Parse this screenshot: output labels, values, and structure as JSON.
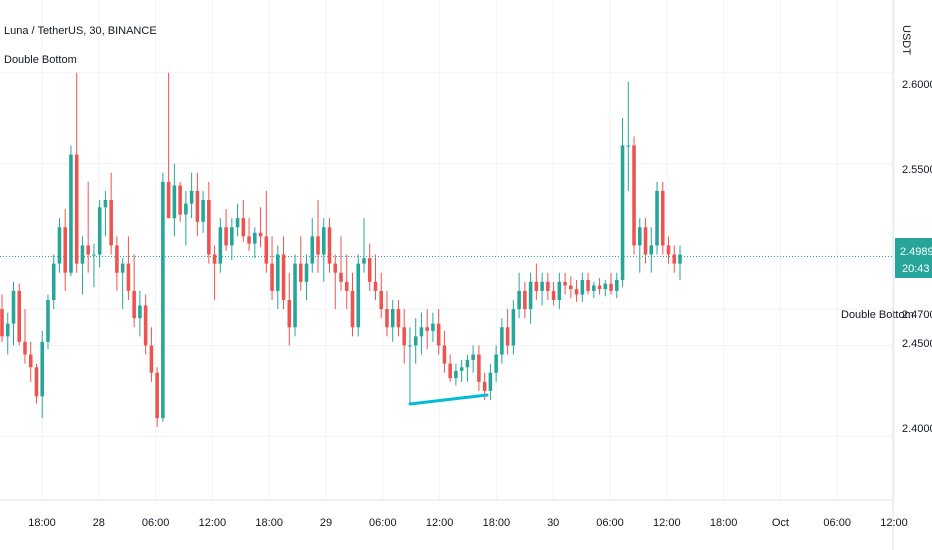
{
  "header": {
    "symbol_line": "Luna / TetherUS, 30, BINANCE",
    "indicator_name": "Double Bottom"
  },
  "price_axis": {
    "unit": "USDT",
    "ticks": [
      "2.6000",
      "2.5500",
      "2.4700",
      "2.4500",
      "2.4000"
    ],
    "current_price": "2.4989",
    "countdown": "20:43"
  },
  "annotation": {
    "label": "Double Bottom"
  },
  "colors": {
    "up": "#26a69a",
    "down": "#ef5350",
    "pattern_line": "#00bcd4",
    "price_line": "#26a69a",
    "grid": "#f0f3fa"
  },
  "chart_data": {
    "type": "candlestick",
    "title": "Luna / TetherUS, 30, BINANCE",
    "ylabel": "USDT",
    "ylim": [
      2.365,
      2.64
    ],
    "y_ticks": [
      2.6,
      2.55,
      2.47,
      2.45,
      2.4
    ],
    "x_tick_labels": [
      "18:00",
      "28",
      "06:00",
      "12:00",
      "18:00",
      "29",
      "06:00",
      "12:00",
      "18:00",
      "30",
      "06:00",
      "12:00",
      "18:00",
      "Oct",
      "06:00",
      "12:00"
    ],
    "interval_minutes": 30,
    "current_price": 2.4989,
    "pattern": {
      "name": "Double Bottom",
      "line_from": 2.415,
      "line_to": 2.42
    },
    "candles": [
      [
        2.47,
        2.478,
        2.452,
        2.455
      ],
      [
        2.455,
        2.468,
        2.445,
        2.462
      ],
      [
        2.462,
        2.485,
        2.45,
        2.48
      ],
      [
        2.48,
        2.484,
        2.45,
        2.452
      ],
      [
        2.452,
        2.47,
        2.44,
        2.445
      ],
      [
        2.445,
        2.452,
        2.43,
        2.438
      ],
      [
        2.438,
        2.44,
        2.418,
        2.422
      ],
      [
        2.422,
        2.458,
        2.41,
        2.452
      ],
      [
        2.452,
        2.478,
        2.448,
        2.475
      ],
      [
        2.475,
        2.5,
        2.47,
        2.495
      ],
      [
        2.495,
        2.52,
        2.49,
        2.515
      ],
      [
        2.515,
        2.525,
        2.48,
        2.49
      ],
      [
        2.49,
        2.56,
        2.488,
        2.555
      ],
      [
        2.555,
        2.6,
        2.49,
        2.495
      ],
      [
        2.495,
        2.51,
        2.478,
        2.505
      ],
      [
        2.505,
        2.54,
        2.49,
        2.5
      ],
      [
        2.5,
        2.506,
        2.482,
        2.5
      ],
      [
        2.5,
        2.53,
        2.493,
        2.526
      ],
      [
        2.526,
        2.535,
        2.51,
        2.53
      ],
      [
        2.53,
        2.545,
        2.5,
        2.505
      ],
      [
        2.505,
        2.51,
        2.48,
        2.49
      ],
      [
        2.49,
        2.498,
        2.47,
        2.495
      ],
      [
        2.495,
        2.51,
        2.475,
        2.48
      ],
      [
        2.48,
        2.5,
        2.46,
        2.465
      ],
      [
        2.465,
        2.48,
        2.455,
        2.472
      ],
      [
        2.472,
        2.478,
        2.445,
        2.45
      ],
      [
        2.45,
        2.46,
        2.43,
        2.435
      ],
      [
        2.435,
        2.438,
        2.405,
        2.41
      ],
      [
        2.41,
        2.545,
        2.408,
        2.54
      ],
      [
        2.54,
        2.6,
        2.52,
        2.52
      ],
      [
        2.52,
        2.55,
        2.51,
        2.538
      ],
      [
        2.538,
        2.54,
        2.518,
        2.522
      ],
      [
        2.522,
        2.535,
        2.505,
        2.528
      ],
      [
        2.528,
        2.545,
        2.52,
        2.535
      ],
      [
        2.535,
        2.545,
        2.51,
        2.518
      ],
      [
        2.518,
        2.535,
        2.512,
        2.53
      ],
      [
        2.53,
        2.54,
        2.495,
        2.5
      ],
      [
        2.5,
        2.505,
        2.475,
        2.495
      ],
      [
        2.495,
        2.52,
        2.49,
        2.515
      ],
      [
        2.515,
        2.525,
        2.502,
        2.505
      ],
      [
        2.505,
        2.52,
        2.497,
        2.515
      ],
      [
        2.515,
        2.528,
        2.51,
        2.52
      ],
      [
        2.52,
        2.53,
        2.507,
        2.51
      ],
      [
        2.51,
        2.52,
        2.502,
        2.506
      ],
      [
        2.506,
        2.515,
        2.498,
        2.512
      ],
      [
        2.512,
        2.526,
        2.504,
        2.51
      ],
      [
        2.51,
        2.535,
        2.49,
        2.495
      ],
      [
        2.495,
        2.51,
        2.475,
        2.48
      ],
      [
        2.48,
        2.505,
        2.47,
        2.5
      ],
      [
        2.5,
        2.51,
        2.47,
        2.475
      ],
      [
        2.475,
        2.49,
        2.45,
        2.46
      ],
      [
        2.46,
        2.5,
        2.455,
        2.495
      ],
      [
        2.495,
        2.51,
        2.48,
        2.485
      ],
      [
        2.485,
        2.5,
        2.475,
        2.495
      ],
      [
        2.495,
        2.52,
        2.49,
        2.51
      ],
      [
        2.51,
        2.53,
        2.49,
        2.5
      ],
      [
        2.5,
        2.52,
        2.485,
        2.515
      ],
      [
        2.515,
        2.52,
        2.49,
        2.495
      ],
      [
        2.495,
        2.5,
        2.47,
        2.49
      ],
      [
        2.49,
        2.51,
        2.48,
        2.485
      ],
      [
        2.485,
        2.5,
        2.47,
        2.48
      ],
      [
        2.48,
        2.49,
        2.455,
        2.46
      ],
      [
        2.46,
        2.5,
        2.455,
        2.495
      ],
      [
        2.495,
        2.52,
        2.49,
        2.498
      ],
      [
        2.498,
        2.506,
        2.48,
        2.485
      ],
      [
        2.485,
        2.5,
        2.475,
        2.48
      ],
      [
        2.48,
        2.49,
        2.465,
        2.47
      ],
      [
        2.47,
        2.48,
        2.455,
        2.46
      ],
      [
        2.46,
        2.475,
        2.452,
        2.47
      ],
      [
        2.47,
        2.475,
        2.455,
        2.46
      ],
      [
        2.46,
        2.47,
        2.44,
        2.45
      ],
      [
        2.45,
        2.46,
        2.418,
        2.45
      ],
      [
        2.45,
        2.465,
        2.44,
        2.455
      ],
      [
        2.455,
        2.468,
        2.445,
        2.46
      ],
      [
        2.46,
        2.47,
        2.448,
        2.458
      ],
      [
        2.458,
        2.468,
        2.452,
        2.462
      ],
      [
        2.462,
        2.47,
        2.445,
        2.45
      ],
      [
        2.45,
        2.458,
        2.435,
        2.44
      ],
      [
        2.44,
        2.445,
        2.43,
        2.432
      ],
      [
        2.432,
        2.44,
        2.428,
        2.436
      ],
      [
        2.436,
        2.442,
        2.43,
        2.438
      ],
      [
        2.438,
        2.445,
        2.43,
        2.442
      ],
      [
        2.442,
        2.45,
        2.435,
        2.445
      ],
      [
        2.445,
        2.45,
        2.425,
        2.43
      ],
      [
        2.43,
        2.435,
        2.42,
        2.425
      ],
      [
        2.425,
        2.44,
        2.42,
        2.435
      ],
      [
        2.435,
        2.45,
        2.43,
        2.445
      ],
      [
        2.445,
        2.465,
        2.44,
        2.46
      ],
      [
        2.46,
        2.47,
        2.445,
        2.45
      ],
      [
        2.45,
        2.475,
        2.445,
        2.47
      ],
      [
        2.47,
        2.49,
        2.465,
        2.48
      ],
      [
        2.48,
        2.485,
        2.465,
        2.47
      ],
      [
        2.47,
        2.49,
        2.462,
        2.485
      ],
      [
        2.485,
        2.495,
        2.475,
        2.48
      ],
      [
        2.48,
        2.49,
        2.472,
        2.485
      ],
      [
        2.485,
        2.49,
        2.475,
        2.48
      ],
      [
        2.48,
        2.485,
        2.472,
        2.475
      ],
      [
        2.475,
        2.49,
        2.47,
        2.485
      ],
      [
        2.485,
        2.49,
        2.478,
        2.483
      ],
      [
        2.483,
        2.488,
        2.476,
        2.481
      ],
      [
        2.481,
        2.486,
        2.474,
        2.478
      ],
      [
        2.478,
        2.49,
        2.474,
        2.486
      ],
      [
        2.486,
        2.49,
        2.478,
        2.48
      ],
      [
        2.48,
        2.485,
        2.476,
        2.483
      ],
      [
        2.483,
        2.487,
        2.478,
        2.481
      ],
      [
        2.481,
        2.486,
        2.477,
        2.484
      ],
      [
        2.484,
        2.49,
        2.478,
        2.48
      ],
      [
        2.48,
        2.49,
        2.476,
        2.486
      ],
      [
        2.486,
        2.575,
        2.482,
        2.56
      ],
      [
        2.56,
        2.595,
        2.535,
        2.56
      ],
      [
        2.56,
        2.565,
        2.5,
        2.505
      ],
      [
        2.505,
        2.52,
        2.49,
        2.515
      ],
      [
        2.515,
        2.52,
        2.495,
        2.5
      ],
      [
        2.5,
        2.515,
        2.49,
        2.505
      ],
      [
        2.505,
        2.54,
        2.5,
        2.535
      ],
      [
        2.535,
        2.54,
        2.5,
        2.505
      ],
      [
        2.505,
        2.51,
        2.495,
        2.5
      ],
      [
        2.5,
        2.505,
        2.49,
        2.495
      ],
      [
        2.495,
        2.505,
        2.486,
        2.5
      ]
    ]
  }
}
